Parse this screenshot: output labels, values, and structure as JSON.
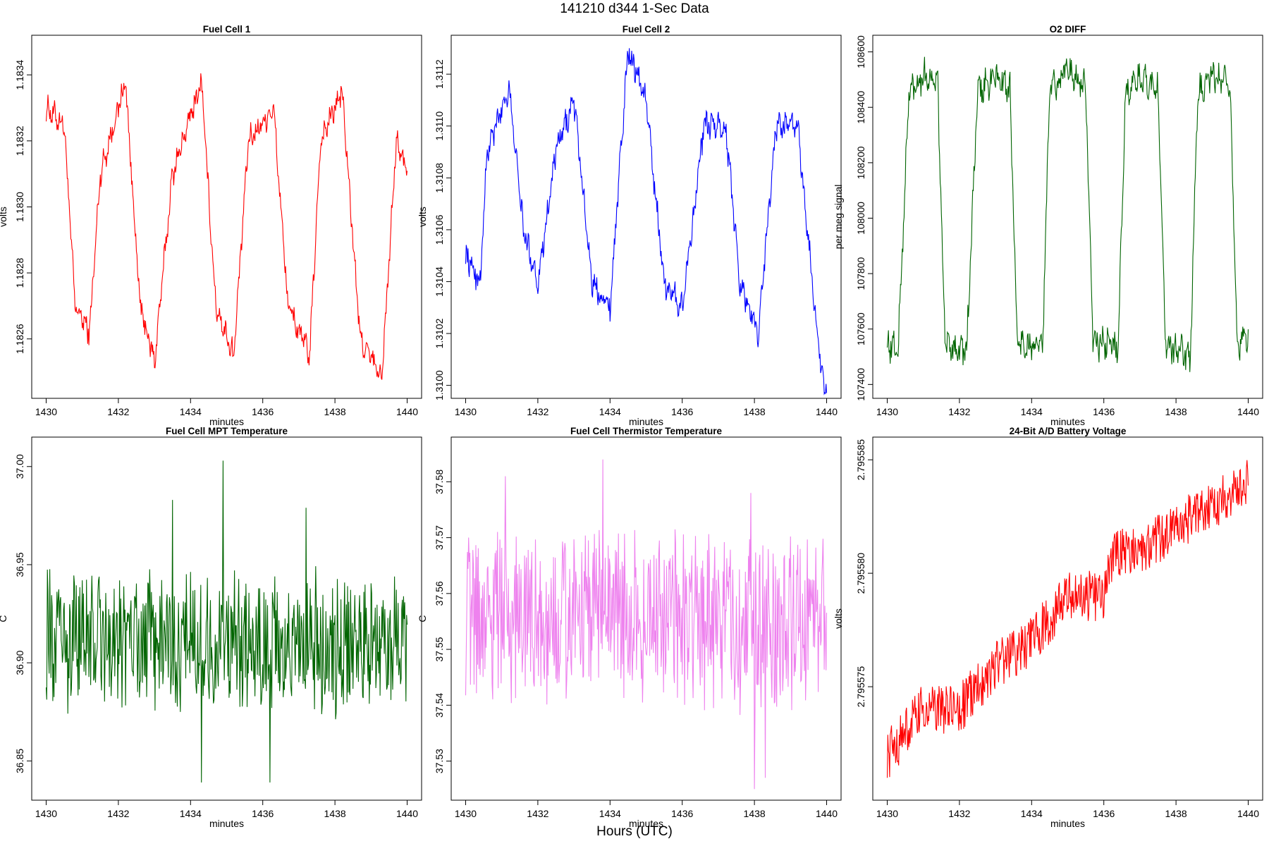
{
  "figure": {
    "title": "141210   d344   1-Sec Data",
    "xlabel": "Hours (UTC)"
  },
  "chart_data": [
    {
      "type": "line",
      "title": "Fuel Cell 1",
      "xlabel": "minutes",
      "ylabel": "volts",
      "color": "#ff0000",
      "xlim": [
        1429.6,
        1440.4
      ],
      "ylim": [
        1.18242,
        1.18352
      ],
      "xticks": [
        1430,
        1432,
        1434,
        1436,
        1438,
        1440
      ],
      "yticks": [
        1.1826,
        1.1828,
        1.183,
        1.1832,
        1.1834
      ],
      "ytick_labels": [
        "1.1826",
        "1.1828",
        "1.1830",
        "1.1832",
        "1.1834"
      ],
      "pattern": {
        "period": 2.1,
        "phase": 1430.45,
        "base": 1.18265,
        "high": 1.18325,
        "noise": 3e-05,
        "duty": 0.5
      },
      "key_points": [
        [
          1430.0,
          1.1833
        ],
        [
          1430.5,
          1.18325
        ],
        [
          1430.8,
          1.1827
        ],
        [
          1431.2,
          1.18262
        ],
        [
          1431.5,
          1.1831
        ],
        [
          1432.2,
          1.18338
        ],
        [
          1432.6,
          1.1827
        ],
        [
          1433.0,
          1.18253
        ],
        [
          1433.5,
          1.1831
        ],
        [
          1434.3,
          1.18338
        ],
        [
          1434.7,
          1.1827
        ],
        [
          1435.2,
          1.18255
        ],
        [
          1435.6,
          1.1832
        ],
        [
          1436.3,
          1.1833
        ],
        [
          1436.7,
          1.1827
        ],
        [
          1437.3,
          1.18255
        ],
        [
          1437.6,
          1.1832
        ],
        [
          1438.2,
          1.18335
        ],
        [
          1438.7,
          1.1826
        ],
        [
          1439.3,
          1.18248
        ],
        [
          1439.7,
          1.1832
        ],
        [
          1440.0,
          1.1831
        ]
      ]
    },
    {
      "type": "line",
      "title": "Fuel Cell 2",
      "xlabel": "minutes",
      "ylabel": "volts",
      "color": "#0000ff",
      "xlim": [
        1429.6,
        1440.4
      ],
      "ylim": [
        1.30995,
        1.31135
      ],
      "xticks": [
        1430,
        1432,
        1434,
        1436,
        1438,
        1440
      ],
      "yticks": [
        1.31,
        1.3102,
        1.3104,
        1.3106,
        1.3108,
        1.311,
        1.3112
      ],
      "ytick_labels": [
        "1.3100",
        "1.3102",
        "1.3104",
        "1.3106",
        "1.3108",
        "1.3110",
        "1.3112"
      ],
      "pattern": {
        "period": 2.1,
        "phase": 1430.4,
        "base": 1.31038,
        "high": 1.311,
        "noise": 4e-05,
        "duty": 0.5
      },
      "key_points": [
        [
          1430.0,
          1.3105
        ],
        [
          1430.4,
          1.3104
        ],
        [
          1430.6,
          1.3109
        ],
        [
          1431.2,
          1.31115
        ],
        [
          1431.6,
          1.3106
        ],
        [
          1432.0,
          1.3104
        ],
        [
          1432.5,
          1.3109
        ],
        [
          1433.0,
          1.3111
        ],
        [
          1433.5,
          1.3104
        ],
        [
          1434.0,
          1.3103
        ],
        [
          1434.5,
          1.3113
        ],
        [
          1435.0,
          1.3111
        ],
        [
          1435.5,
          1.3104
        ],
        [
          1436.0,
          1.3103
        ],
        [
          1436.6,
          1.311
        ],
        [
          1437.2,
          1.311
        ],
        [
          1437.6,
          1.3104
        ],
        [
          1438.1,
          1.3102
        ],
        [
          1438.6,
          1.311
        ],
        [
          1439.2,
          1.311
        ],
        [
          1439.6,
          1.3104
        ],
        [
          1439.9,
          1.31
        ]
      ]
    },
    {
      "type": "line",
      "title": "O2 DIFF",
      "xlabel": "minutes",
      "ylabel": "per meg signal",
      "color": "#006400",
      "xlim": [
        1429.6,
        1440.4
      ],
      "ylim": [
        107350,
        108660
      ],
      "xticks": [
        1430,
        1432,
        1434,
        1436,
        1438,
        1440
      ],
      "yticks": [
        107400,
        107600,
        107800,
        108000,
        108200,
        108400,
        108600
      ],
      "ytick_labels": [
        "107400",
        "107600",
        "107800",
        "108000",
        "108200",
        "108400",
        "108600"
      ],
      "pattern": {
        "period": 2.0,
        "phase": 1430.4,
        "base": 107530,
        "high": 108490,
        "noise": 45,
        "duty": 0.5
      },
      "key_points": [
        [
          1430.0,
          107550
        ],
        [
          1430.3,
          107520
        ],
        [
          1430.6,
          108450
        ],
        [
          1431.0,
          108520
        ],
        [
          1431.4,
          108480
        ],
        [
          1431.6,
          107550
        ],
        [
          1432.2,
          107520
        ],
        [
          1432.5,
          108450
        ],
        [
          1433.0,
          108510
        ],
        [
          1433.4,
          108470
        ],
        [
          1433.6,
          107550
        ],
        [
          1434.3,
          107530
        ],
        [
          1434.5,
          108460
        ],
        [
          1435.0,
          108540
        ],
        [
          1435.5,
          108470
        ],
        [
          1435.7,
          107550
        ],
        [
          1436.4,
          107540
        ],
        [
          1436.6,
          108460
        ],
        [
          1437.0,
          108500
        ],
        [
          1437.5,
          108470
        ],
        [
          1437.7,
          107550
        ],
        [
          1438.4,
          107500
        ],
        [
          1438.6,
          108450
        ],
        [
          1439.0,
          108510
        ],
        [
          1439.5,
          108470
        ],
        [
          1439.7,
          107530
        ],
        [
          1440.0,
          107580
        ]
      ]
    },
    {
      "type": "line",
      "title": "Fuel Cell MPT Temperature",
      "xlabel": "minutes",
      "ylabel": "C",
      "color": "#006400",
      "xlim": [
        1429.6,
        1440.4
      ],
      "ylim": [
        36.83,
        37.015
      ],
      "xticks": [
        1430,
        1432,
        1434,
        1436,
        1438,
        1440
      ],
      "yticks": [
        36.85,
        36.9,
        36.95,
        37.0
      ],
      "ytick_labels": [
        "36.85",
        "36.90",
        "36.95",
        "37.00"
      ],
      "pattern": {
        "mean": 36.91,
        "noise": 0.022
      },
      "spikes": [
        [
          1433.5,
          36.983
        ],
        [
          1434.9,
          37.003
        ],
        [
          1437.2,
          36.979
        ],
        [
          1434.3,
          36.839
        ],
        [
          1436.2,
          36.839
        ]
      ]
    },
    {
      "type": "line",
      "title": "Fuel Cell Thermistor Temperature",
      "xlabel": "minutes",
      "ylabel": "C",
      "color": "#ee82ee",
      "xlim": [
        1429.6,
        1440.4
      ],
      "ylim": [
        37.523,
        37.588
      ],
      "xticks": [
        1430,
        1432,
        1434,
        1436,
        1438,
        1440
      ],
      "yticks": [
        37.53,
        37.54,
        37.55,
        37.56,
        37.57,
        37.58
      ],
      "ytick_labels": [
        "37.53",
        "37.54",
        "37.55",
        "37.56",
        "37.57",
        "37.58"
      ],
      "pattern": {
        "mean": 37.555,
        "noise": 0.0095
      },
      "spikes": [
        [
          1431.1,
          37.581
        ],
        [
          1433.8,
          37.584
        ],
        [
          1437.9,
          37.578
        ],
        [
          1438.0,
          37.525
        ],
        [
          1438.3,
          37.527
        ]
      ]
    },
    {
      "type": "line",
      "title": "24-Bit A/D Battery Voltage",
      "xlabel": "minutes",
      "ylabel": "volts",
      "color": "#ff0000",
      "xlim": [
        1429.6,
        1440.4
      ],
      "ylim": [
        2.79557,
        2.795586
      ],
      "xticks": [
        1430,
        1432,
        1434,
        1436,
        1438,
        1440
      ],
      "yticks": [
        2.795575,
        2.79558,
        2.795585
      ],
      "ytick_labels": [
        "2.795575",
        "2.795580",
        "2.795585"
      ],
      "pattern": {
        "start": 2.795573,
        "end": 2.795584,
        "noise": 7e-07
      },
      "key_points": [
        [
          1430.0,
          2.795572
        ],
        [
          1431.0,
          2.795574
        ],
        [
          1432.0,
          2.795574
        ],
        [
          1433.0,
          2.795576
        ],
        [
          1434.0,
          2.795577
        ],
        [
          1435.0,
          2.795579
        ],
        [
          1436.0,
          2.795579
        ],
        [
          1436.3,
          2.795581
        ],
        [
          1437.0,
          2.795581
        ],
        [
          1438.0,
          2.795582
        ],
        [
          1439.0,
          2.795583
        ],
        [
          1440.0,
          2.795584
        ]
      ]
    }
  ]
}
